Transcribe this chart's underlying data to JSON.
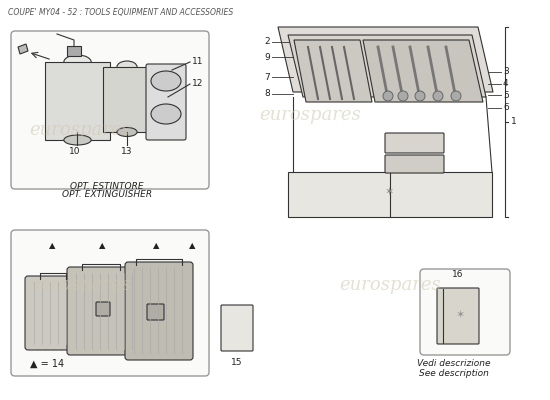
{
  "title": "COUPE' MY04 - 52 : TOOLS EQUIPMENT AND ACCESSORIES",
  "bg_color": "#ffffff",
  "title_color": "#555555",
  "title_fontsize": 5.5,
  "line_color": "#333333",
  "watermark_color": "#d0c8b0",
  "extinguisher_label1": "OPT. ESTINTORE",
  "extinguisher_label2": "OPT. EXTINGUISHER",
  "luggage_label": "▲ = 14",
  "item15_label": "15",
  "item16_label": "16",
  "see_desc1": "Vedi descrizione",
  "see_desc2": "See description",
  "part_numbers_left": [
    "10",
    "13",
    "12",
    "11",
    "12"
  ],
  "part_numbers_toolbox_left": [
    "2",
    "9",
    "7",
    "8"
  ],
  "part_numbers_toolbox_right": [
    "3",
    "4",
    "5",
    "6"
  ],
  "part_number_toolbox_outer": "1",
  "label_color": "#222222",
  "box_fill": "#f5f5f0",
  "box_edge": "#888888",
  "clasp_color": "#b0ada4",
  "clamp_color": "#cccccc",
  "bracket_color": "#dddddd"
}
